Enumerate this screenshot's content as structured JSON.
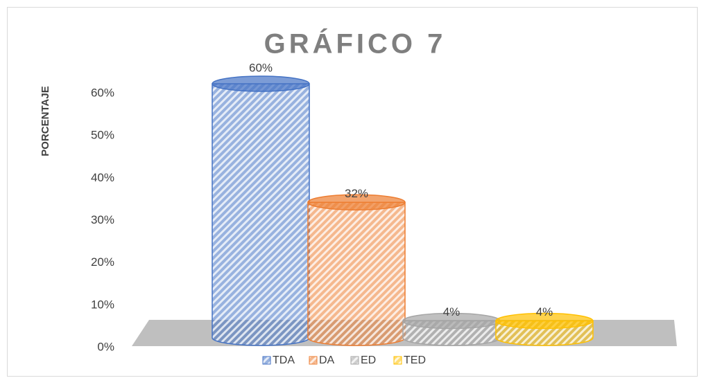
{
  "chart_data": {
    "type": "bar",
    "title": "GRÁFICO 7",
    "y_label": "PORCENTAJE",
    "categories": [
      "TDA",
      "DA",
      "ED",
      "TED"
    ],
    "values": [
      60,
      32,
      4,
      4
    ],
    "value_labels": [
      "60%",
      "32%",
      "4%",
      "4%"
    ],
    "colors": [
      "#4472c4",
      "#ed7d31",
      "#a5a5a5",
      "#ffc000"
    ],
    "ylim": [
      0,
      60
    ],
    "yticks": [
      {
        "value": 0,
        "label": "0%"
      },
      {
        "value": 10,
        "label": "10%"
      },
      {
        "value": 20,
        "label": "20%"
      },
      {
        "value": 30,
        "label": "30%"
      },
      {
        "value": 40,
        "label": "40%"
      },
      {
        "value": 50,
        "label": "50%"
      },
      {
        "value": 60,
        "label": "60%"
      }
    ],
    "legend": "bottom"
  }
}
